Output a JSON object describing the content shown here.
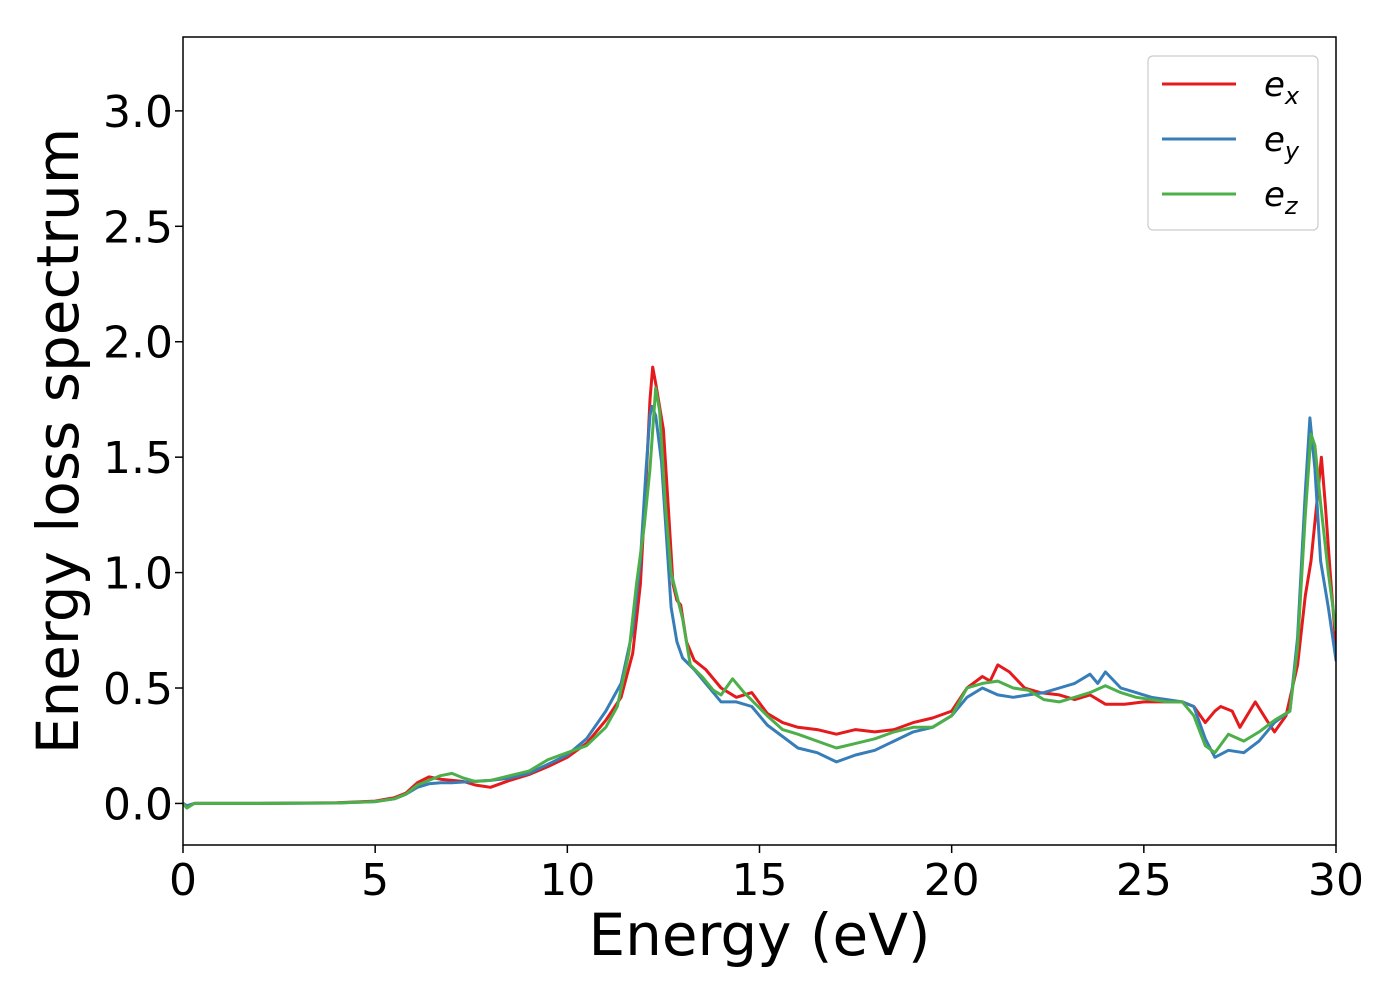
{
  "chart_data": {
    "type": "line",
    "title": "",
    "xlabel": "Energy (eV)",
    "ylabel": "Energy loss spectrum",
    "xlim": [
      0,
      30
    ],
    "ylim": [
      -0.18,
      3.32
    ],
    "xticks": [
      0,
      5,
      10,
      15,
      20,
      25,
      30
    ],
    "xtick_labels": [
      "0",
      "5",
      "10",
      "15",
      "20",
      "25",
      "30"
    ],
    "yticks": [
      0.0,
      0.5,
      1.0,
      1.5,
      2.0,
      2.5,
      3.0
    ],
    "ytick_labels": [
      "0.0",
      "0.5",
      "1.0",
      "1.5",
      "2.0",
      "2.5",
      "3.0"
    ],
    "grid": false,
    "legend_position": "top-right",
    "series": [
      {
        "name": "e_x",
        "legend_base": "e",
        "legend_sub": "x",
        "color": "#e41a1c",
        "points": [
          [
            0,
            0.0
          ],
          [
            0.1,
            -0.01
          ],
          [
            0.3,
            0.0
          ],
          [
            0.8,
            0.0
          ],
          [
            2,
            0.0
          ],
          [
            4,
            0.003
          ],
          [
            5,
            0.01
          ],
          [
            5.5,
            0.025
          ],
          [
            5.8,
            0.045
          ],
          [
            6.1,
            0.09
          ],
          [
            6.4,
            0.115
          ],
          [
            6.7,
            0.105
          ],
          [
            7.0,
            0.1
          ],
          [
            7.3,
            0.095
          ],
          [
            7.6,
            0.08
          ],
          [
            8.0,
            0.07
          ],
          [
            8.5,
            0.1
          ],
          [
            9.0,
            0.125
          ],
          [
            9.5,
            0.16
          ],
          [
            10.0,
            0.2
          ],
          [
            10.5,
            0.26
          ],
          [
            11.0,
            0.36
          ],
          [
            11.4,
            0.46
          ],
          [
            11.7,
            0.65
          ],
          [
            11.9,
            0.95
          ],
          [
            12.05,
            1.4
          ],
          [
            12.15,
            1.75
          ],
          [
            12.22,
            1.89
          ],
          [
            12.3,
            1.82
          ],
          [
            12.5,
            1.62
          ],
          [
            12.65,
            1.22
          ],
          [
            12.75,
            0.95
          ],
          [
            12.85,
            0.88
          ],
          [
            12.95,
            0.86
          ],
          [
            13.1,
            0.7
          ],
          [
            13.3,
            0.62
          ],
          [
            13.6,
            0.58
          ],
          [
            14.0,
            0.5
          ],
          [
            14.4,
            0.46
          ],
          [
            14.8,
            0.48
          ],
          [
            15.2,
            0.39
          ],
          [
            15.6,
            0.35
          ],
          [
            16.0,
            0.33
          ],
          [
            16.5,
            0.32
          ],
          [
            17.0,
            0.3
          ],
          [
            17.5,
            0.32
          ],
          [
            18.0,
            0.31
          ],
          [
            18.5,
            0.32
          ],
          [
            19.0,
            0.35
          ],
          [
            19.5,
            0.37
          ],
          [
            20.0,
            0.4
          ],
          [
            20.4,
            0.5
          ],
          [
            20.8,
            0.55
          ],
          [
            21.0,
            0.53
          ],
          [
            21.2,
            0.6
          ],
          [
            21.5,
            0.57
          ],
          [
            21.9,
            0.5
          ],
          [
            22.3,
            0.48
          ],
          [
            22.8,
            0.47
          ],
          [
            23.2,
            0.45
          ],
          [
            23.6,
            0.47
          ],
          [
            24.0,
            0.43
          ],
          [
            24.5,
            0.43
          ],
          [
            25.0,
            0.44
          ],
          [
            25.5,
            0.44
          ],
          [
            26.0,
            0.44
          ],
          [
            26.3,
            0.42
          ],
          [
            26.6,
            0.35
          ],
          [
            26.85,
            0.4
          ],
          [
            27.0,
            0.42
          ],
          [
            27.3,
            0.4
          ],
          [
            27.5,
            0.33
          ],
          [
            27.9,
            0.44
          ],
          [
            28.2,
            0.36
          ],
          [
            28.4,
            0.31
          ],
          [
            28.7,
            0.38
          ],
          [
            29.0,
            0.6
          ],
          [
            29.2,
            0.9
          ],
          [
            29.35,
            1.05
          ],
          [
            29.5,
            1.3
          ],
          [
            29.62,
            1.5
          ],
          [
            29.72,
            1.3
          ],
          [
            29.85,
            1.0
          ],
          [
            30.0,
            0.68
          ]
        ]
      },
      {
        "name": "e_y",
        "legend_base": "e",
        "legend_sub": "y",
        "color": "#377eb8",
        "points": [
          [
            0,
            0.0
          ],
          [
            0.1,
            -0.01
          ],
          [
            0.3,
            0.0
          ],
          [
            0.8,
            0.0
          ],
          [
            2,
            0.0
          ],
          [
            4,
            0.002
          ],
          [
            5,
            0.008
          ],
          [
            5.5,
            0.02
          ],
          [
            5.8,
            0.04
          ],
          [
            6.1,
            0.07
          ],
          [
            6.4,
            0.085
          ],
          [
            6.7,
            0.09
          ],
          [
            7.0,
            0.09
          ],
          [
            7.5,
            0.095
          ],
          [
            8.0,
            0.1
          ],
          [
            8.5,
            0.11
          ],
          [
            9.0,
            0.13
          ],
          [
            9.5,
            0.17
          ],
          [
            10.0,
            0.21
          ],
          [
            10.5,
            0.28
          ],
          [
            11.0,
            0.4
          ],
          [
            11.4,
            0.52
          ],
          [
            11.7,
            0.75
          ],
          [
            11.9,
            1.05
          ],
          [
            12.05,
            1.45
          ],
          [
            12.15,
            1.68
          ],
          [
            12.2,
            1.72
          ],
          [
            12.3,
            1.68
          ],
          [
            12.45,
            1.48
          ],
          [
            12.6,
            1.1
          ],
          [
            12.7,
            0.85
          ],
          [
            12.85,
            0.7
          ],
          [
            13.0,
            0.63
          ],
          [
            13.3,
            0.58
          ],
          [
            13.6,
            0.52
          ],
          [
            14.0,
            0.44
          ],
          [
            14.4,
            0.44
          ],
          [
            14.8,
            0.42
          ],
          [
            15.2,
            0.34
          ],
          [
            15.6,
            0.29
          ],
          [
            16.0,
            0.24
          ],
          [
            16.5,
            0.22
          ],
          [
            17.0,
            0.18
          ],
          [
            17.5,
            0.21
          ],
          [
            18.0,
            0.23
          ],
          [
            18.5,
            0.27
          ],
          [
            19.0,
            0.31
          ],
          [
            19.5,
            0.33
          ],
          [
            20.0,
            0.38
          ],
          [
            20.4,
            0.46
          ],
          [
            20.8,
            0.5
          ],
          [
            21.2,
            0.47
          ],
          [
            21.6,
            0.46
          ],
          [
            22.0,
            0.47
          ],
          [
            22.4,
            0.48
          ],
          [
            22.8,
            0.5
          ],
          [
            23.2,
            0.52
          ],
          [
            23.6,
            0.56
          ],
          [
            23.8,
            0.52
          ],
          [
            24.0,
            0.57
          ],
          [
            24.4,
            0.5
          ],
          [
            24.8,
            0.48
          ],
          [
            25.2,
            0.46
          ],
          [
            25.6,
            0.45
          ],
          [
            26.0,
            0.44
          ],
          [
            26.3,
            0.42
          ],
          [
            26.6,
            0.28
          ],
          [
            26.85,
            0.2
          ],
          [
            27.2,
            0.23
          ],
          [
            27.6,
            0.22
          ],
          [
            28.0,
            0.27
          ],
          [
            28.4,
            0.35
          ],
          [
            28.8,
            0.4
          ],
          [
            29.0,
            0.72
          ],
          [
            29.2,
            1.35
          ],
          [
            29.32,
            1.67
          ],
          [
            29.45,
            1.45
          ],
          [
            29.6,
            1.05
          ],
          [
            29.8,
            0.85
          ],
          [
            30.0,
            0.62
          ]
        ]
      },
      {
        "name": "e_z",
        "legend_base": "e",
        "legend_sub": "z",
        "color": "#4daf4a",
        "points": [
          [
            0,
            0.0
          ],
          [
            0.1,
            -0.02
          ],
          [
            0.3,
            0.0
          ],
          [
            0.8,
            0.0
          ],
          [
            2,
            0.0
          ],
          [
            4,
            0.002
          ],
          [
            5,
            0.008
          ],
          [
            5.5,
            0.02
          ],
          [
            5.8,
            0.04
          ],
          [
            6.1,
            0.08
          ],
          [
            6.4,
            0.1
          ],
          [
            6.7,
            0.12
          ],
          [
            7.0,
            0.13
          ],
          [
            7.3,
            0.11
          ],
          [
            7.6,
            0.095
          ],
          [
            8.0,
            0.1
          ],
          [
            8.5,
            0.12
          ],
          [
            9.0,
            0.14
          ],
          [
            9.5,
            0.19
          ],
          [
            10.0,
            0.22
          ],
          [
            10.5,
            0.25
          ],
          [
            11.0,
            0.33
          ],
          [
            11.3,
            0.42
          ],
          [
            11.6,
            0.65
          ],
          [
            11.8,
            0.95
          ],
          [
            12.0,
            1.2
          ],
          [
            12.15,
            1.45
          ],
          [
            12.3,
            1.8
          ],
          [
            12.4,
            1.7
          ],
          [
            12.55,
            1.3
          ],
          [
            12.7,
            1.0
          ],
          [
            12.85,
            0.9
          ],
          [
            13.0,
            0.8
          ],
          [
            13.2,
            0.6
          ],
          [
            13.5,
            0.55
          ],
          [
            13.8,
            0.49
          ],
          [
            14.0,
            0.47
          ],
          [
            14.3,
            0.54
          ],
          [
            14.6,
            0.48
          ],
          [
            14.9,
            0.43
          ],
          [
            15.2,
            0.38
          ],
          [
            15.6,
            0.32
          ],
          [
            16.0,
            0.3
          ],
          [
            16.5,
            0.27
          ],
          [
            17.0,
            0.24
          ],
          [
            17.5,
            0.26
          ],
          [
            18.0,
            0.28
          ],
          [
            18.5,
            0.31
          ],
          [
            19.0,
            0.33
          ],
          [
            19.5,
            0.33
          ],
          [
            20.0,
            0.38
          ],
          [
            20.4,
            0.5
          ],
          [
            20.8,
            0.52
          ],
          [
            21.2,
            0.53
          ],
          [
            21.6,
            0.5
          ],
          [
            22.0,
            0.49
          ],
          [
            22.4,
            0.45
          ],
          [
            22.8,
            0.44
          ],
          [
            23.2,
            0.46
          ],
          [
            23.6,
            0.48
          ],
          [
            24.0,
            0.51
          ],
          [
            24.4,
            0.48
          ],
          [
            24.8,
            0.46
          ],
          [
            25.2,
            0.45
          ],
          [
            25.6,
            0.44
          ],
          [
            26.0,
            0.44
          ],
          [
            26.3,
            0.38
          ],
          [
            26.6,
            0.25
          ],
          [
            26.85,
            0.22
          ],
          [
            27.2,
            0.3
          ],
          [
            27.6,
            0.27
          ],
          [
            28.0,
            0.31
          ],
          [
            28.4,
            0.36
          ],
          [
            28.8,
            0.4
          ],
          [
            29.0,
            0.68
          ],
          [
            29.2,
            1.25
          ],
          [
            29.35,
            1.6
          ],
          [
            29.45,
            1.55
          ],
          [
            29.6,
            1.3
          ],
          [
            29.8,
            1.0
          ],
          [
            30.0,
            0.75
          ]
        ]
      }
    ]
  }
}
